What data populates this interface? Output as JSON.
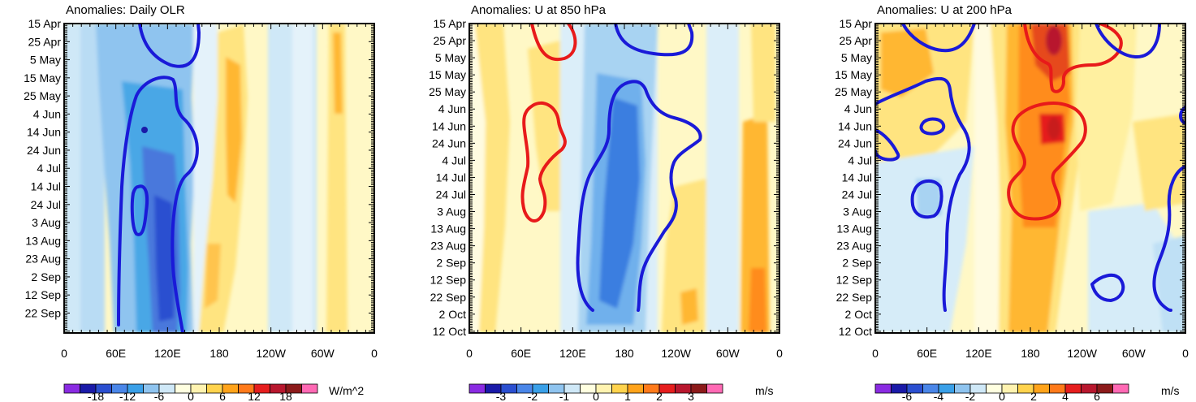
{
  "chart_data": [
    {
      "type": "heatmap",
      "title": "Anomalies: Daily OLR",
      "x_ticks": [
        "0",
        "60E",
        "120E",
        "180",
        "120W",
        "60W",
        "0"
      ],
      "y_ticks": [
        "15 Apr",
        "25 Apr",
        "5 May",
        "15 May",
        "25 May",
        "4 Jun",
        "14 Jun",
        "24 Jun",
        "4 Jul",
        "14 Jul",
        "24 Jul",
        "3 Aug",
        "13 Aug",
        "23 Aug",
        "2 Sep",
        "12 Sep",
        "22 Sep"
      ],
      "colorbar": {
        "labels": [
          "-18",
          "-12",
          "-6",
          "0",
          "6",
          "12",
          "18"
        ],
        "units": "W/m^2"
      },
      "contour_colors": [
        "#1a1ad8"
      ]
    },
    {
      "type": "heatmap",
      "title": "Anomalies: U at 850 hPa",
      "x_ticks": [
        "0",
        "60E",
        "120E",
        "180",
        "120W",
        "60W",
        "0"
      ],
      "y_ticks": [
        "15 Apr",
        "25 Apr",
        "5 May",
        "15 May",
        "25 May",
        "4 Jun",
        "14 Jun",
        "24 Jun",
        "4 Jul",
        "14 Jul",
        "24 Jul",
        "3 Aug",
        "13 Aug",
        "23 Aug",
        "2 Sep",
        "12 Sep",
        "22 Sep",
        "2 Oct",
        "12 Oct"
      ],
      "colorbar": {
        "labels": [
          "-3",
          "-2",
          "-1",
          "0",
          "1",
          "2",
          "3"
        ],
        "units": "m/s"
      },
      "contour_colors": [
        "#1a1ad8",
        "#e81a1a"
      ]
    },
    {
      "type": "heatmap",
      "title": "Anomalies: U at 200 hPa",
      "x_ticks": [
        "0",
        "60E",
        "120E",
        "180",
        "120W",
        "60W",
        "0"
      ],
      "y_ticks": [
        "15 Apr",
        "25 Apr",
        "5 May",
        "15 May",
        "25 May",
        "4 Jun",
        "14 Jun",
        "24 Jun",
        "4 Jul",
        "14 Jul",
        "24 Jul",
        "3 Aug",
        "13 Aug",
        "23 Aug",
        "2 Sep",
        "12 Sep",
        "22 Sep",
        "2 Oct",
        "12 Oct"
      ],
      "colorbar": {
        "labels": [
          "-6",
          "-4",
          "-2",
          "0",
          "2",
          "4",
          "6"
        ],
        "units": "m/s"
      },
      "contour_colors": [
        "#1a1ad8",
        "#e81a1a"
      ]
    }
  ],
  "palette": [
    "#8a2be2",
    "#1a1aa8",
    "#2b4fd0",
    "#4a86e8",
    "#3aa0e8",
    "#8fc4ef",
    "#cfe8f7",
    "#ffffe0",
    "#fff3b0",
    "#ffd34d",
    "#ffa31a",
    "#ff7a1a",
    "#e61e1e",
    "#b8172e",
    "#8c1a1a",
    "#ff69b4"
  ]
}
